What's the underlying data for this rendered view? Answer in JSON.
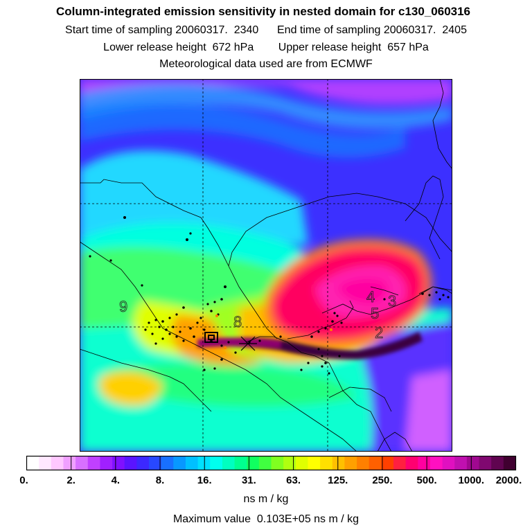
{
  "header": {
    "title": "Column-integrated emission sensitivity in nested domain for c130_060316",
    "start_label": "Start time of sampling 20060317.  2340",
    "end_label": "End time of sampling 20060317.  2405",
    "lower_label": "Lower release height  672 hPa",
    "upper_label": "Upper release height  657 hPa",
    "met_label": "Meteorological data used are from ECMWF"
  },
  "map": {
    "day_markers": [
      "9",
      "8",
      "4",
      "5",
      "3",
      "2"
    ],
    "colors": {
      "background": "#4030ff",
      "plume_core": "#2a0030",
      "plume_red": "#ff1060",
      "frame": "#000000"
    }
  },
  "legend": {
    "tick_labels": [
      "0.",
      "2.",
      "4.",
      "8.",
      "16.",
      "31.",
      "63.",
      "125.",
      "250.",
      "500.",
      "1000.",
      "2000."
    ],
    "colors": [
      "#ffffff",
      "#ffe8ff",
      "#ffc8ff",
      "#f0a0ff",
      "#d870ff",
      "#c040ff",
      "#a020ff",
      "#8010ff",
      "#5a14ff",
      "#3c28ff",
      "#2848ff",
      "#1870ff",
      "#0898ff",
      "#00c0ff",
      "#00e0ff",
      "#00ffee",
      "#00ffc0",
      "#00ff90",
      "#10ff60",
      "#40ff40",
      "#80ff20",
      "#b0ff10",
      "#e0ff00",
      "#ffff00",
      "#ffe000",
      "#ffc000",
      "#ffa000",
      "#ff8000",
      "#ff6000",
      "#ff4000",
      "#ff2040",
      "#ff0070",
      "#ff00a0",
      "#ff10c0",
      "#e010c0",
      "#c010b0",
      "#a00890",
      "#800870",
      "#600450",
      "#400030"
    ]
  },
  "units_label": "ns m / kg",
  "max_label": "Maximum value  0.103E+05 ns m / kg"
}
